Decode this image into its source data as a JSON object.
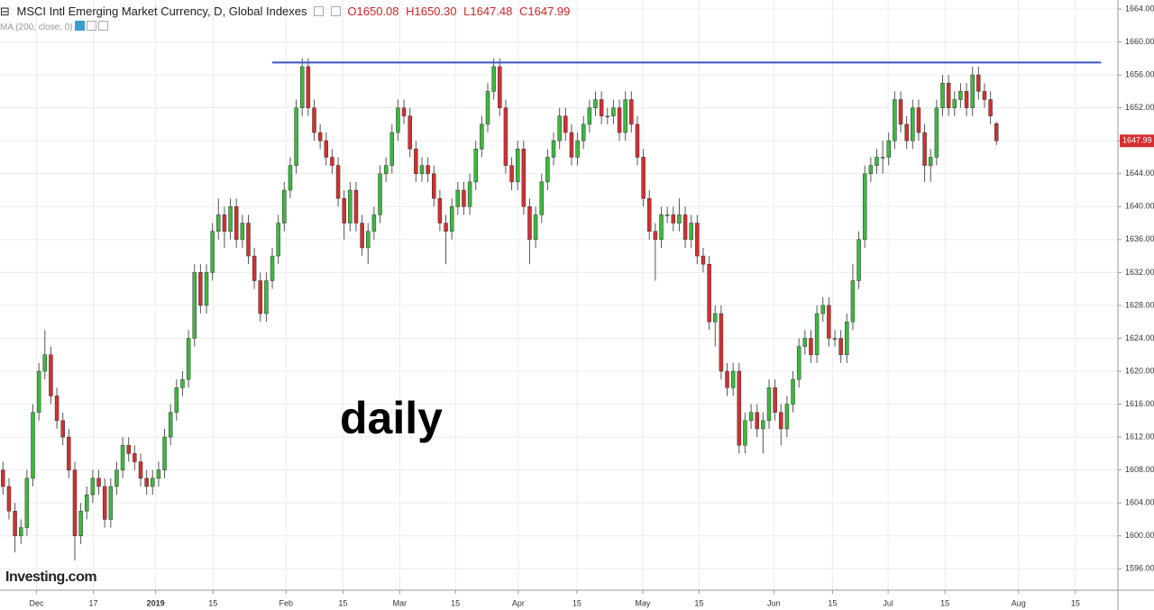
{
  "chart_data": {
    "type": "candlestick",
    "title": "MSCI Intl Emerging Market Currency, D, Global Indexes",
    "header_values": [
      "O1650.08",
      "H1650.30",
      "L1647.48",
      "C1647.99"
    ],
    "indicator": "MA (200, close, 0)",
    "annotation": "daily",
    "watermark": "Investing.com",
    "up_color": "#3cb93c",
    "down_color": "#d32f2f",
    "grid": true,
    "xlim": [
      -0.5,
      186.3
    ],
    "ylim": [
      1593.4,
      1665.1
    ],
    "yticks": [
      {
        "value": 1596,
        "label": "1596.00"
      },
      {
        "value": 1600,
        "label": "1600.00"
      },
      {
        "value": 1604,
        "label": "1604.00"
      },
      {
        "value": 1608,
        "label": "1608.00"
      },
      {
        "value": 1612,
        "label": "1612.00"
      },
      {
        "value": 1616,
        "label": "1616.00"
      },
      {
        "value": 1620,
        "label": "1620.00"
      },
      {
        "value": 1624,
        "label": "1624.00"
      },
      {
        "value": 1628,
        "label": "1628.00"
      },
      {
        "value": 1632,
        "label": "1632.00"
      },
      {
        "value": 1636,
        "label": "1636.00"
      },
      {
        "value": 1640,
        "label": "1640.00"
      },
      {
        "value": 1644,
        "label": "1644.00"
      },
      {
        "value": 1648,
        "label": "1648.00"
      },
      {
        "value": 1652,
        "label": "1652.00"
      },
      {
        "value": 1656,
        "label": "1656.00"
      },
      {
        "value": 1660,
        "label": "1660.00"
      },
      {
        "value": 1664,
        "label": "1664.00"
      }
    ],
    "xticks": [
      {
        "value": 5.6,
        "label": "Dec"
      },
      {
        "value": 15.1,
        "label": "17"
      },
      {
        "value": 25.5,
        "label": "2019"
      },
      {
        "value": 35.1,
        "label": "15"
      },
      {
        "value": 47.3,
        "label": "Feb"
      },
      {
        "value": 56.8,
        "label": "15"
      },
      {
        "value": 66.3,
        "label": "Mar"
      },
      {
        "value": 75.6,
        "label": "15"
      },
      {
        "value": 86.1,
        "label": "Apr"
      },
      {
        "value": 95.9,
        "label": "15"
      },
      {
        "value": 106.9,
        "label": "May"
      },
      {
        "value": 116.3,
        "label": "15"
      },
      {
        "value": 128.8,
        "label": "Jun"
      },
      {
        "value": 138.6,
        "label": "15"
      },
      {
        "value": 147.9,
        "label": "Jul"
      },
      {
        "value": 157.4,
        "label": "15"
      },
      {
        "value": 169.7,
        "label": "Aug"
      },
      {
        "value": 179.2,
        "label": "15"
      }
    ],
    "resistance": {
      "value": 1657.5,
      "x": [
        45,
        183.5
      ],
      "color": "#3f51c5"
    },
    "open": [
      1608,
      1606,
      1603,
      1600,
      1601,
      1607,
      1615,
      1620,
      1622,
      1617,
      1614,
      1612,
      1608,
      1600,
      1603,
      1605,
      1607,
      1606,
      1602,
      1606,
      1608,
      1611,
      1610,
      1609,
      1607,
      1606,
      1607,
      1608,
      1612,
      1615,
      1618,
      1619,
      1624,
      1632,
      1628,
      1632,
      1637,
      1639,
      1637,
      1640,
      1636,
      1638,
      1634,
      1631,
      1627,
      1631,
      1634,
      1638,
      1642,
      1645,
      1652,
      1657,
      1652,
      1649,
      1648,
      1646,
      1645,
      1641,
      1638,
      1642,
      1638,
      1635,
      1637,
      1639,
      1644,
      1645,
      1649,
      1652,
      1651,
      1647,
      1644,
      1645,
      1644,
      1641,
      1638,
      1637,
      1640,
      1642,
      1640,
      1643,
      1647,
      1650,
      1654,
      1657,
      1652,
      1645,
      1643,
      1647,
      1640,
      1636,
      1639,
      1643,
      1646,
      1648,
      1651,
      1649,
      1646,
      1648,
      1650,
      1652,
      1653,
      1651,
      1651,
      1652,
      1649,
      1653,
      1650,
      1646,
      1641,
      1637,
      1636,
      1639,
      1639,
      1638,
      1639,
      1636,
      1638,
      1634,
      1633,
      1626,
      1627,
      1620,
      1618,
      1620,
      1611,
      1614,
      1615,
      1613,
      1614,
      1618,
      1615,
      1613,
      1616,
      1619,
      1623,
      1624,
      1622,
      1627,
      1628,
      1624,
      1624,
      1622,
      1626,
      1631,
      1636,
      1644,
      1645,
      1646,
      1646,
      1648,
      1653,
      1650,
      1648,
      1652,
      1649,
      1645,
      1646,
      1652,
      1655,
      1652,
      1653,
      1654,
      1652,
      1656,
      1654,
      1653,
      1650.08
    ],
    "high": [
      1609,
      1607,
      1604,
      1602,
      1608,
      1616,
      1621,
      1625,
      1623,
      1618,
      1615,
      1613,
      1609,
      1604,
      1606,
      1608,
      1608,
      1607,
      1607,
      1609,
      1612,
      1612,
      1611,
      1610,
      1608,
      1608,
      1609,
      1613,
      1616,
      1619,
      1620,
      1625,
      1633,
      1633,
      1633,
      1638,
      1641,
      1640,
      1641,
      1641,
      1639,
      1639,
      1635,
      1632,
      1632,
      1635,
      1639,
      1643,
      1646,
      1653,
      1658,
      1658,
      1653,
      1650,
      1649,
      1647,
      1646,
      1642,
      1643,
      1643,
      1639,
      1638,
      1640,
      1645,
      1646,
      1650,
      1653,
      1653,
      1652,
      1648,
      1646,
      1646,
      1645,
      1642,
      1639,
      1641,
      1643,
      1643,
      1644,
      1648,
      1651,
      1655,
      1658,
      1658,
      1653,
      1646,
      1648,
      1648,
      1641,
      1640,
      1644,
      1647,
      1649,
      1652,
      1652,
      1650,
      1649,
      1651,
      1653,
      1654,
      1654,
      1652,
      1653,
      1653,
      1654,
      1654,
      1651,
      1647,
      1642,
      1638,
      1640,
      1640,
      1640,
      1641,
      1640,
      1639,
      1639,
      1635,
      1634,
      1628,
      1628,
      1621,
      1621,
      1621,
      1615,
      1616,
      1616,
      1615,
      1619,
      1619,
      1616,
      1617,
      1620,
      1624,
      1625,
      1625,
      1628,
      1629,
      1629,
      1625,
      1625,
      1627,
      1633,
      1637,
      1645,
      1646,
      1647,
      1648,
      1649,
      1654,
      1654,
      1651,
      1653,
      1653,
      1650,
      1647,
      1653,
      1656,
      1656,
      1654,
      1655,
      1655,
      1657,
      1657,
      1655,
      1654,
      1650.3
    ],
    "low": [
      1605,
      1602,
      1598,
      1599,
      1600,
      1606,
      1614,
      1619,
      1616,
      1613,
      1611,
      1607,
      1597,
      1599,
      1602,
      1604,
      1605,
      1601,
      1601,
      1605,
      1607,
      1609,
      1608,
      1606,
      1605,
      1605,
      1606,
      1607,
      1611,
      1614,
      1617,
      1618,
      1623,
      1627,
      1627,
      1631,
      1636,
      1635,
      1636,
      1635,
      1635,
      1633,
      1630,
      1626,
      1626,
      1630,
      1633,
      1637,
      1641,
      1644,
      1651,
      1651,
      1648,
      1647,
      1645,
      1644,
      1640,
      1636,
      1637,
      1637,
      1634,
      1633,
      1636,
      1638,
      1643,
      1644,
      1648,
      1650,
      1646,
      1643,
      1643,
      1643,
      1640,
      1637,
      1633,
      1636,
      1639,
      1639,
      1639,
      1642,
      1646,
      1649,
      1653,
      1651,
      1644,
      1642,
      1642,
      1639,
      1633,
      1635,
      1638,
      1642,
      1645,
      1647,
      1648,
      1645,
      1645,
      1647,
      1649,
      1651,
      1650,
      1650,
      1650,
      1648,
      1648,
      1649,
      1645,
      1640,
      1636,
      1631,
      1635,
      1638,
      1637,
      1637,
      1635,
      1635,
      1633,
      1632,
      1625,
      1623,
      1619,
      1617,
      1617,
      1610,
      1610,
      1613,
      1612,
      1610,
      1613,
      1614,
      1611,
      1612,
      1615,
      1618,
      1622,
      1621,
      1621,
      1626,
      1623,
      1623,
      1621,
      1621,
      1625,
      1630,
      1635,
      1643,
      1644,
      1644,
      1645,
      1647,
      1649,
      1647,
      1647,
      1648,
      1643,
      1643,
      1645,
      1651,
      1651,
      1651,
      1652,
      1651,
      1651,
      1653,
      1652,
      1650,
      1647.48
    ],
    "close": [
      1606,
      1603,
      1600,
      1601,
      1607,
      1615,
      1620,
      1622,
      1617,
      1614,
      1612,
      1608,
      1600,
      1603,
      1605,
      1607,
      1606,
      1602,
      1606,
      1608,
      1611,
      1610,
      1609,
      1607,
      1606,
      1607,
      1608,
      1612,
      1615,
      1618,
      1619,
      1624,
      1632,
      1628,
      1632,
      1637,
      1639,
      1637,
      1640,
      1636,
      1638,
      1634,
      1631,
      1627,
      1631,
      1634,
      1638,
      1642,
      1645,
      1652,
      1657,
      1652,
      1649,
      1648,
      1646,
      1645,
      1641,
      1638,
      1642,
      1638,
      1635,
      1637,
      1639,
      1644,
      1645,
      1649,
      1652,
      1651,
      1647,
      1644,
      1645,
      1644,
      1641,
      1638,
      1637,
      1640,
      1642,
      1640,
      1643,
      1647,
      1650,
      1654,
      1657,
      1652,
      1645,
      1643,
      1647,
      1640,
      1636,
      1639,
      1643,
      1646,
      1648,
      1651,
      1649,
      1646,
      1648,
      1650,
      1652,
      1653,
      1651,
      1651,
      1652,
      1649,
      1653,
      1650,
      1646,
      1641,
      1637,
      1636,
      1639,
      1639,
      1638,
      1639,
      1636,
      1638,
      1634,
      1633,
      1626,
      1627,
      1620,
      1618,
      1620,
      1611,
      1614,
      1615,
      1613,
      1614,
      1618,
      1615,
      1613,
      1616,
      1619,
      1623,
      1624,
      1622,
      1627,
      1628,
      1624,
      1624,
      1622,
      1626,
      1631,
      1636,
      1644,
      1645,
      1646,
      1646,
      1648,
      1653,
      1650,
      1648,
      1652,
      1649,
      1645,
      1646,
      1652,
      1655,
      1652,
      1653,
      1654,
      1652,
      1656,
      1654,
      1653,
      1651,
      1647.99
    ]
  }
}
